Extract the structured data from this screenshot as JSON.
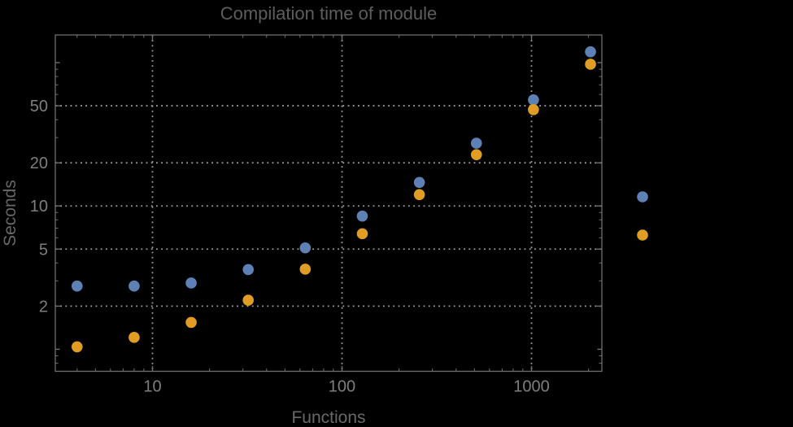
{
  "chart_data": {
    "type": "scatter",
    "title": "Compilation time of module",
    "xlabel": "Functions",
    "ylabel": "Seconds",
    "x_scale": "log",
    "y_scale": "log",
    "xlim": [
      3.07,
      2351
    ],
    "ylim": [
      0.702,
      156
    ],
    "x_major_ticks": [
      10,
      100,
      1000
    ],
    "x_tick_labels": [
      "10",
      "100",
      "1000"
    ],
    "y_major_ticks": [
      2,
      5,
      10,
      20,
      50
    ],
    "y_tick_labels": [
      "2",
      "5",
      "10",
      "20",
      "50"
    ],
    "grid": "dotted gridlines at major ticks, all four frame edges ticked",
    "legend_position": "right of frame, markers only, no visible labels",
    "x": [
      4,
      8,
      16,
      32,
      64,
      128,
      256,
      512,
      1024,
      2048
    ],
    "series": [
      {
        "name": "series-1-blue",
        "color": "#5E81B5",
        "values": [
          2.76,
          2.76,
          2.9,
          3.6,
          5.1,
          8.5,
          14.6,
          27.4,
          55,
          119
        ]
      },
      {
        "name": "series-2-orange",
        "color": "#E19C24",
        "values": [
          1.04,
          1.21,
          1.54,
          2.2,
          3.62,
          6.4,
          12.0,
          22.8,
          47,
          97.5
        ]
      }
    ],
    "legend": {
      "labels_visible": false,
      "marker_colors": [
        "#5E81B5",
        "#E19C24"
      ]
    }
  },
  "colors": {
    "background": "#000000",
    "frame": "#6e6e6e",
    "gridline": "#9e9e9e",
    "tick_label_text": "#7e7e7e",
    "title_text": "#5d5d5d",
    "axis_label_text": "#686868"
  }
}
